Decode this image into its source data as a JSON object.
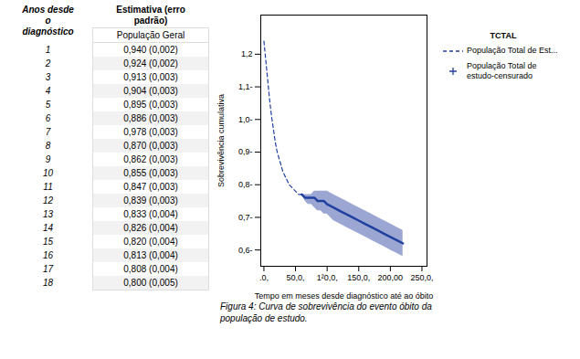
{
  "chart_data": [
    {
      "type": "table",
      "columns": [
        "Anos desde\no\ndiagnóstico",
        "Estimativa (erro\npadrão)"
      ],
      "subtitle": "População Geral",
      "rows": [
        {
          "year": 1,
          "value": "0,940 (0,002)"
        },
        {
          "year": 2,
          "value": "0,924 (0,002)"
        },
        {
          "year": 3,
          "value": "0,913 (0,003)"
        },
        {
          "year": 4,
          "value": "0,904 (0,003)"
        },
        {
          "year": 5,
          "value": "0,895 (0,003)"
        },
        {
          "year": 6,
          "value": "0,886 (0,003)"
        },
        {
          "year": 7,
          "value": "0,978 (0,003)"
        },
        {
          "year": 8,
          "value": "0,870 (0,003)"
        },
        {
          "year": 9,
          "value": "0,862 (0,003)"
        },
        {
          "year": 10,
          "value": "0,855 (0,003)"
        },
        {
          "year": 11,
          "value": "0,847 (0,003)"
        },
        {
          "year": 12,
          "value": "0,839 (0,003)"
        },
        {
          "year": 13,
          "value": "0,833 (0,004)"
        },
        {
          "year": 14,
          "value": "0,826 (0,004)"
        },
        {
          "year": 15,
          "value": "0,820 (0,004)"
        },
        {
          "year": 16,
          "value": "0,813 (0,004)"
        },
        {
          "year": 17,
          "value": "0,808 (0,004)"
        },
        {
          "year": 18,
          "value": "0,800 (0,005)"
        }
      ]
    },
    {
      "type": "line",
      "xlabel": "Tempo em meses desde diagnóstico até ao óbito",
      "ylabel": "Sobrevivência cumulativa",
      "x": [
        0,
        3,
        6,
        9,
        12,
        15,
        18,
        21,
        24,
        27,
        30,
        35,
        40,
        45,
        50,
        55,
        60,
        65,
        70,
        75,
        80,
        85,
        90,
        95,
        100,
        110,
        120,
        130,
        140,
        150,
        160,
        170,
        180,
        190,
        200,
        210,
        220
      ],
      "series": [
        {
          "name": "População Total de Est...",
          "color": "#2040a0",
          "line_style": "dashed",
          "values": [
            1.24,
            1.18,
            1.12,
            1.06,
            1.01,
            0.97,
            0.93,
            0.9,
            0.88,
            0.86,
            0.84,
            0.82,
            0.8,
            0.79,
            0.78,
            0.77,
            0.77,
            0.76,
            0.76,
            0.76,
            0.76,
            0.75,
            0.75,
            0.75,
            0.74,
            0.73,
            0.72,
            0.71,
            0.7,
            0.69,
            0.68,
            0.67,
            0.66,
            0.65,
            0.64,
            0.63,
            0.62
          ],
          "ci_upper": [
            1.24,
            1.18,
            1.12,
            1.06,
            1.01,
            0.97,
            0.93,
            0.9,
            0.88,
            0.86,
            0.84,
            0.82,
            0.8,
            0.79,
            0.78,
            0.77,
            0.77,
            0.77,
            0.77,
            0.77,
            0.78,
            0.78,
            0.78,
            0.78,
            0.78,
            0.77,
            0.76,
            0.75,
            0.74,
            0.73,
            0.72,
            0.71,
            0.7,
            0.69,
            0.68,
            0.67,
            0.66
          ],
          "ci_lower": [
            1.24,
            1.18,
            1.12,
            1.06,
            1.01,
            0.97,
            0.93,
            0.9,
            0.88,
            0.86,
            0.84,
            0.82,
            0.8,
            0.79,
            0.78,
            0.77,
            0.77,
            0.75,
            0.74,
            0.74,
            0.73,
            0.72,
            0.72,
            0.71,
            0.71,
            0.69,
            0.68,
            0.67,
            0.66,
            0.65,
            0.64,
            0.63,
            0.62,
            0.61,
            0.6,
            0.59,
            0.58
          ],
          "band_color": "#7080c0"
        },
        {
          "name": "População Total de\nestudo-censurado",
          "color": "#2040a0",
          "marker": "plus",
          "values": [
            null,
            null,
            null,
            null,
            null,
            null,
            null,
            null,
            null,
            null,
            null,
            null,
            null,
            null,
            null,
            null,
            null,
            null,
            null,
            null,
            null,
            null,
            null,
            null,
            null,
            null,
            null,
            null,
            null,
            null,
            null,
            null,
            null,
            null,
            null,
            null,
            null
          ]
        }
      ],
      "legend": "right",
      "legend_title": "TCTAL",
      "caption": "Figura 4: Curva de sobrevivência do evento óbito da\npopulação de estudo.",
      "xlim": [
        -5,
        258
      ],
      "xticks": [
        {
          "value": 0,
          "label": ".0,"
        },
        {
          "value": 50,
          "label": "50,0,"
        },
        {
          "value": 100,
          "label": "1²0,0,"
        },
        {
          "value": 150,
          "label": "150,0,"
        },
        {
          "value": 200,
          "label": "200,00"
        },
        {
          "value": 250,
          "label": "250,0,"
        }
      ],
      "ylim": [
        0.55,
        1.32
      ],
      "yticks": [
        {
          "value": 0.6,
          "label": "0,6-"
        },
        {
          "value": 0.7,
          "label": "0,7-"
        },
        {
          "value": 0.8,
          "label": "0,8-"
        },
        {
          "value": 0.9,
          "label": "0,9-"
        },
        {
          "value": 1.0,
          "label": "1,0-"
        },
        {
          "value": 1.1,
          "label": "1,1-"
        },
        {
          "value": 1.2,
          "label": "1,2"
        }
      ],
      "grid": false
    }
  ]
}
